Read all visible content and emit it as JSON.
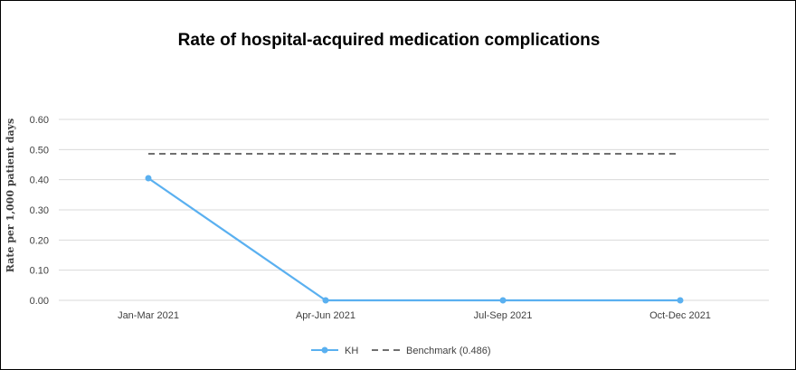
{
  "chart_data": {
    "type": "line",
    "title": "Rate of hospital-acquired medication complications",
    "xlabel": "",
    "ylabel": "Rate per 1,000 patient days",
    "categories": [
      "Jan-Mar 2021",
      "Apr-Jun 2021",
      "Jul-Sep 2021",
      "Oct-Dec 2021"
    ],
    "ylim": [
      0,
      0.6
    ],
    "yticks": [
      "0.00",
      "0.10",
      "0.20",
      "0.30",
      "0.40",
      "0.50",
      "0.60"
    ],
    "grid": true,
    "legend_position": "bottom",
    "series": [
      {
        "name": "KH",
        "values": [
          0.405,
          0,
          0,
          0
        ],
        "color": "#5ab0f0",
        "style": "solid",
        "markers": true
      },
      {
        "name": "Benchmark (0.486)",
        "values": [
          0.486,
          0.486,
          0.486,
          0.486
        ],
        "color": "#707070",
        "style": "dashed",
        "markers": false
      }
    ]
  }
}
